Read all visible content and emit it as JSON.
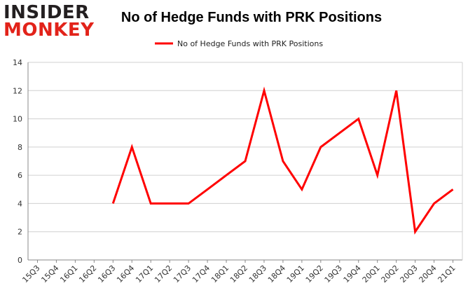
{
  "logo": {
    "line1": "INSIDER",
    "line2": "MONKEY"
  },
  "chart_data": {
    "type": "line",
    "title": "No of Hedge Funds with PRK Positions",
    "categories": [
      "15Q3",
      "15Q4",
      "16Q1",
      "16Q2",
      "16Q3",
      "16Q4",
      "17Q1",
      "17Q2",
      "17Q3",
      "17Q4",
      "18Q1",
      "18Q2",
      "18Q3",
      "18Q4",
      "19Q1",
      "19Q2",
      "19Q3",
      "19Q4",
      "20Q1",
      "20Q2",
      "20Q3",
      "20Q4",
      "21Q1"
    ],
    "series": [
      {
        "name": "No of Hedge Funds with PRK Positions",
        "values": [
          null,
          null,
          null,
          null,
          4,
          8,
          4,
          4,
          4,
          5,
          6,
          7,
          12,
          7,
          5,
          8,
          9,
          10,
          6,
          12,
          2,
          4,
          5
        ]
      }
    ],
    "ylim": [
      0,
      14
    ],
    "yticks": [
      0,
      2,
      4,
      6,
      8,
      10,
      12,
      14
    ],
    "grid": true,
    "legend_position": "top-center",
    "colors": {
      "series": "#ff0000",
      "grid": "#d0d0d0",
      "axis": "#888888"
    }
  }
}
